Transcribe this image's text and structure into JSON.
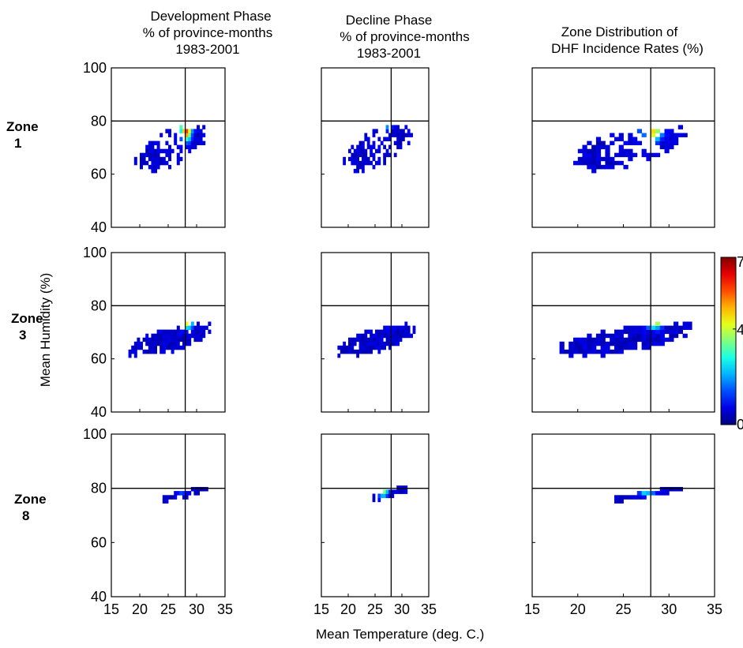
{
  "column_titles": [
    {
      "line1": "Development Phase",
      "line2": "% of province-months",
      "line3": "1983-2001"
    },
    {
      "line1": "Decline Phase",
      "line2": "% of province-months",
      "line3": "1983-2001"
    },
    {
      "line1": "Zone Distribution of",
      "line2": "DHF Incidence Rates (%)",
      "line3": ""
    }
  ],
  "row_labels": [
    {
      "line1": "Zone",
      "line2": "1"
    },
    {
      "line1": "Zone",
      "line2": "3"
    },
    {
      "line1": "Zone",
      "line2": "8"
    }
  ],
  "xlabel": "Mean Temperature (deg. C.)",
  "ylabel": "Mean Humidity (%)",
  "colors": {
    "background": "#ffffff",
    "frame": "#000000",
    "low": "#00008f",
    "high": "#800000"
  },
  "chart_data": {
    "type": "heatmap",
    "xlim": [
      15,
      35
    ],
    "ylim": [
      40,
      100
    ],
    "x_ticks": [
      15,
      20,
      25,
      30,
      35
    ],
    "y_ticks": [
      40,
      60,
      80,
      100
    ],
    "colorbar": {
      "min": 0,
      "max": 7,
      "ticks": [
        "0",
        "4",
        "7"
      ],
      "colormap": "jet"
    },
    "reference_lines": {
      "temperature": 28,
      "humidity": 80
    },
    "panels": [
      {
        "row": 0,
        "col": 0,
        "zone": "1",
        "domain": {
          "xc": 25.5,
          "yc": 70,
          "sx": 4.6,
          "sy": 8,
          "tilt": -2.3,
          "xmin": 17.5,
          "xmax": 33.5,
          "ymin": 44,
          "ymax": 87
        },
        "peaks": [
          {
            "x": 27.3,
            "y": 82,
            "v": 7
          },
          {
            "x": 28.2,
            "y": 76,
            "v": 5
          }
        ],
        "gap": {
          "x": 26,
          "y": 71,
          "r": 3.2
        }
      },
      {
        "row": 0,
        "col": 1,
        "zone": "1",
        "domain": {
          "xc": 25.5,
          "yc": 70,
          "sx": 4.6,
          "sy": 8,
          "tilt": -2.3,
          "xmin": 17.5,
          "xmax": 33.5,
          "ymin": 44,
          "ymax": 87
        },
        "peaks": [
          {
            "x": 27.3,
            "y": 82,
            "v": 7
          },
          {
            "x": 26.5,
            "y": 84,
            "v": 4
          }
        ],
        "gap": {
          "x": 26,
          "y": 71,
          "r": 3.2
        }
      },
      {
        "row": 0,
        "col": 2,
        "zone": "1",
        "domain": {
          "xc": 25.5,
          "yc": 70,
          "sx": 4.6,
          "sy": 8,
          "tilt": -2.3,
          "xmin": 17.5,
          "xmax": 33.5,
          "ymin": 44,
          "ymax": 87
        },
        "peaks": [
          {
            "x": 27.3,
            "y": 81,
            "v": 7
          },
          {
            "x": 28.3,
            "y": 76,
            "v": 4
          }
        ],
        "gap": {
          "x": 26,
          "y": 71,
          "r": 3.2
        }
      },
      {
        "row": 1,
        "col": 0,
        "zone": "3",
        "domain": {
          "xc": 25,
          "yc": 67,
          "sx": 5.2,
          "sy": 6,
          "tilt": -1.2,
          "xmin": 18,
          "xmax": 32.5,
          "ymin": 56,
          "ymax": 87
        },
        "peaks": [
          {
            "x": 27.8,
            "y": 80,
            "v": 7
          },
          {
            "x": 28.4,
            "y": 75,
            "v": 5
          }
        ],
        "gap": null
      },
      {
        "row": 1,
        "col": 1,
        "zone": "3",
        "domain": {
          "xc": 25,
          "yc": 67,
          "sx": 5.2,
          "sy": 6,
          "tilt": -1.2,
          "xmin": 18,
          "xmax": 32.5,
          "ymin": 56,
          "ymax": 87
        },
        "peaks": [
          {
            "x": 27.3,
            "y": 80,
            "v": 6
          },
          {
            "x": 27.8,
            "y": 76,
            "v": 3
          }
        ],
        "gap": null
      },
      {
        "row": 1,
        "col": 2,
        "zone": "3",
        "domain": {
          "xc": 25,
          "yc": 67,
          "sx": 5.2,
          "sy": 6,
          "tilt": -1.2,
          "xmin": 18,
          "xmax": 32.5,
          "ymin": 56,
          "ymax": 87
        },
        "peaks": [
          {
            "x": 27.8,
            "y": 80,
            "v": 6
          },
          {
            "x": 28.4,
            "y": 75,
            "v": 5
          }
        ],
        "gap": null
      },
      {
        "row": 2,
        "col": 0,
        "zone": "8",
        "domain": {
          "xc": 28,
          "yc": 78,
          "sx": 2.2,
          "sy": 5,
          "tilt": -0.6,
          "xmin": 24,
          "xmax": 32,
          "ymin": 64,
          "ymax": 91
        },
        "peaks": [
          {
            "x": 27.6,
            "y": 83,
            "v": 7
          },
          {
            "x": 27,
            "y": 86,
            "v": 5
          }
        ],
        "gap": null
      },
      {
        "row": 2,
        "col": 1,
        "zone": "8",
        "domain": {
          "xc": 27.5,
          "yc": 78,
          "sx": 2.2,
          "sy": 5,
          "tilt": -0.6,
          "xmin": 24.5,
          "xmax": 31,
          "ymin": 66,
          "ymax": 91
        },
        "peaks": [
          {
            "x": 26.8,
            "y": 84,
            "v": 7
          },
          {
            "x": 26.5,
            "y": 80,
            "v": 3
          }
        ],
        "gap": null
      },
      {
        "row": 2,
        "col": 2,
        "zone": "8",
        "domain": {
          "xc": 27.8,
          "yc": 78,
          "sx": 2.2,
          "sy": 5,
          "tilt": -0.6,
          "xmin": 24,
          "xmax": 31.5,
          "ymin": 64,
          "ymax": 91
        },
        "peaks": [
          {
            "x": 27.6,
            "y": 82,
            "v": 7
          },
          {
            "x": 27.2,
            "y": 85,
            "v": 4
          }
        ],
        "gap": null
      }
    ]
  }
}
